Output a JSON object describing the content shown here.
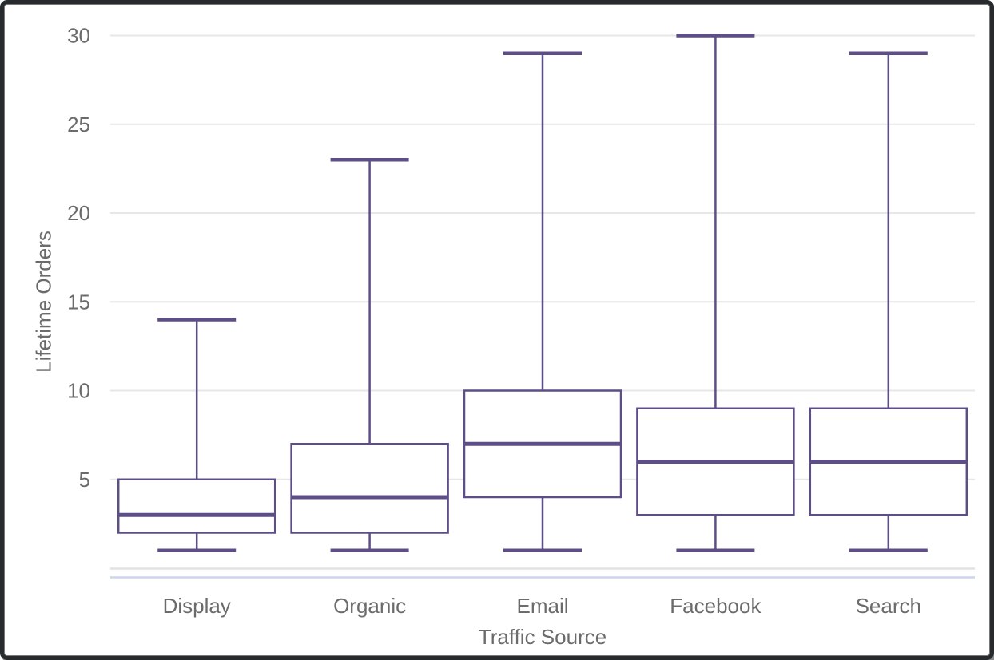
{
  "window": {
    "background": "#ffffff",
    "frame_color": "#272b2d"
  },
  "chart_data": {
    "type": "boxplot",
    "title": "",
    "xlabel": "Traffic Source",
    "ylabel": "Lifetime Orders",
    "categories": [
      "Display",
      "Organic",
      "Email",
      "Facebook",
      "Search"
    ],
    "series": [
      {
        "name": "Lifetime Orders",
        "stats": [
          {
            "category": "Display",
            "min": 1,
            "q1": 2,
            "median": 3,
            "q3": 5,
            "max": 14
          },
          {
            "category": "Organic",
            "min": 1,
            "q1": 2,
            "median": 4,
            "q3": 7,
            "max": 23
          },
          {
            "category": "Email",
            "min": 1,
            "q1": 4,
            "median": 7,
            "q3": 10,
            "max": 29
          },
          {
            "category": "Facebook",
            "min": 1,
            "q1": 3,
            "median": 6,
            "q3": 9,
            "max": 30
          },
          {
            "category": "Search",
            "min": 1,
            "q1": 3,
            "median": 6,
            "q3": 9,
            "max": 29
          }
        ]
      }
    ],
    "yticks": [
      5,
      10,
      15,
      20,
      25,
      30
    ],
    "ylim": [
      0,
      30.5
    ],
    "grid": true,
    "legend": false,
    "colors": {
      "box_stroke": "#5E4E87",
      "box_fill": "#ffffff",
      "gridline": "#e7e7e7",
      "axis_line": "#e2e2e2",
      "baseline_accent": "#ccd5ea",
      "text": "#6b6b6b"
    }
  }
}
